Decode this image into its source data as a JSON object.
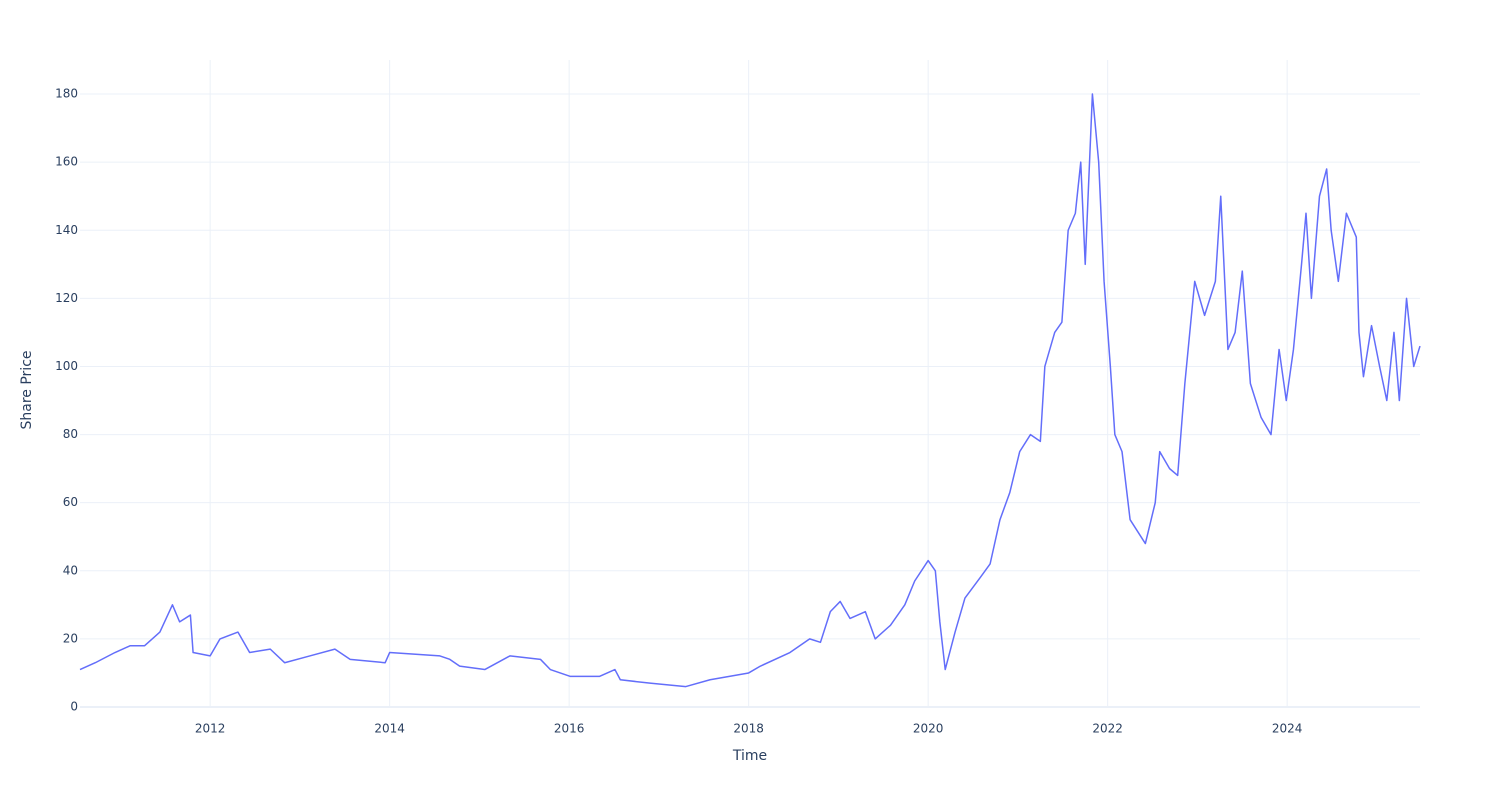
{
  "chart_data": {
    "type": "line",
    "x_label": "Time",
    "y_label": "Share Price",
    "x": [
      2010.55,
      2010.72,
      2010.94,
      2011.11,
      2011.27,
      2011.44,
      2011.58,
      2011.66,
      2011.78,
      2011.81,
      2012.0,
      2012.11,
      2012.31,
      2012.44,
      2012.67,
      2012.83,
      2013.11,
      2013.39,
      2013.56,
      2013.95,
      2014.0,
      2014.56,
      2014.67,
      2014.78,
      2015.06,
      2015.34,
      2015.68,
      2015.79,
      2016.01,
      2016.34,
      2016.51,
      2016.57,
      2016.9,
      2017.3,
      2017.57,
      2018.0,
      2018.13,
      2018.46,
      2018.68,
      2018.8,
      2018.91,
      2019.02,
      2019.13,
      2019.3,
      2019.41,
      2019.58,
      2019.74,
      2019.85,
      2020.0,
      2020.08,
      2020.13,
      2020.19,
      2020.3,
      2020.41,
      2020.58,
      2020.69,
      2020.8,
      2020.91,
      2021.02,
      2021.14,
      2021.25,
      2021.3,
      2021.41,
      2021.49,
      2021.56,
      2021.64,
      2021.7,
      2021.75,
      2021.83,
      2021.9,
      2021.96,
      2022.03,
      2022.08,
      2022.16,
      2022.25,
      2022.42,
      2022.53,
      2022.58,
      2022.69,
      2022.78,
      2022.86,
      2022.97,
      2023.08,
      2023.2,
      2023.26,
      2023.34,
      2023.42,
      2023.5,
      2023.59,
      2023.71,
      2023.82,
      2023.91,
      2023.99,
      2024.07,
      2024.16,
      2024.21,
      2024.27,
      2024.36,
      2024.44,
      2024.49,
      2024.57,
      2024.66,
      2024.77,
      2024.8,
      2024.85,
      2024.94,
      2025.03,
      2025.11,
      2025.19,
      2025.25,
      2025.33,
      2025.41,
      2025.48
    ],
    "values": [
      11,
      13,
      16,
      18,
      18,
      22,
      30,
      25,
      27,
      16,
      15,
      20,
      22,
      16,
      17,
      13,
      15,
      17,
      14,
      13,
      16,
      15,
      14,
      12,
      11,
      15,
      14,
      11,
      9,
      9,
      11,
      8,
      7,
      6,
      8,
      10,
      12,
      16,
      20,
      19,
      28,
      31,
      26,
      28,
      20,
      24,
      30,
      37,
      43,
      40,
      25,
      11,
      22,
      32,
      38,
      42,
      55,
      63,
      75,
      80,
      78,
      100,
      110,
      113,
      140,
      145,
      160,
      130,
      180,
      160,
      125,
      100,
      80,
      75,
      55,
      48,
      60,
      75,
      70,
      68,
      95,
      125,
      115,
      125,
      150,
      105,
      110,
      128,
      95,
      85,
      80,
      105,
      90,
      105,
      130,
      145,
      120,
      150,
      158,
      140,
      125,
      145,
      138,
      110,
      97,
      112,
      100,
      90,
      110,
      90,
      120,
      100,
      106
    ],
    "color": "#636efa",
    "xlim": [
      2010.55,
      2025.48
    ],
    "ylim": [
      0,
      190
    ],
    "xticks": [
      2012,
      2014,
      2016,
      2018,
      2020,
      2022,
      2024
    ],
    "yticks": [
      0,
      20,
      40,
      60,
      80,
      100,
      120,
      140,
      160,
      180
    ],
    "grid": true
  }
}
